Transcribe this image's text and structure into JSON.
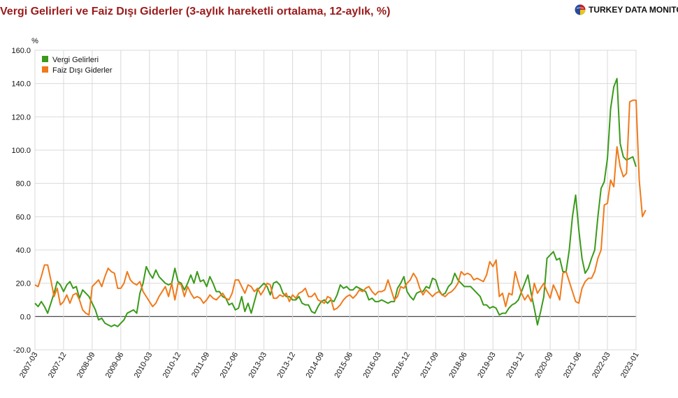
{
  "header": {
    "title": "Vergi Gelirleri ve Faiz Dışı Giderler (3-aylık hareketli ortalama, 12-aylık, %)",
    "brand": "TURKEY DATA MONITOR"
  },
  "colors": {
    "vergi": "#3a9a1a",
    "faiz": "#f07a1a",
    "grid": "#d9d9d9",
    "zero": "#333333",
    "title": "#9a1b1b"
  },
  "chart_data": {
    "type": "line",
    "ylabel": "%",
    "ylim": [
      -20,
      160
    ],
    "yticks": [
      "-20.0",
      "0.0",
      "20.0",
      "40.0",
      "60.0",
      "80.0",
      "100.0",
      "120.0",
      "140.0",
      "160.0"
    ],
    "xticks": [
      "2007-03",
      "2007-12",
      "2008-09",
      "2009-06",
      "2010-03",
      "2010-12",
      "2011-09",
      "2012-06",
      "2013-03",
      "2013-12",
      "2014-09",
      "2015-06",
      "2016-03",
      "2016-12",
      "2017-09",
      "2018-06",
      "2019-03",
      "2019-12",
      "2020-09",
      "2021-06",
      "2022-03",
      "2023-01"
    ],
    "legend": "top-left",
    "grid": true,
    "start": "2007-03",
    "series": [
      {
        "name": "Vergi Gelirleri",
        "values": [
          8,
          6,
          9,
          6,
          2,
          8,
          14,
          21,
          19,
          15,
          19,
          21,
          17,
          18,
          11,
          16,
          14,
          12,
          8,
          4,
          -2,
          -1,
          -4,
          -5,
          -6,
          -5,
          -6,
          -4,
          -2,
          2,
          3,
          4,
          2,
          14,
          20,
          30,
          26,
          23,
          28,
          24,
          22,
          20,
          19,
          20,
          29,
          21,
          20,
          16,
          20,
          25,
          20,
          27,
          21,
          22,
          18,
          24,
          20,
          15,
          15,
          12,
          11,
          7,
          8,
          4,
          5,
          12,
          3,
          8,
          2,
          9,
          16,
          18,
          20,
          18,
          13,
          20,
          21,
          19,
          14,
          12,
          12,
          10,
          10,
          12,
          8,
          7,
          7,
          3,
          2,
          6,
          9,
          10,
          8,
          10,
          9,
          13,
          19,
          17,
          18,
          16,
          16,
          18,
          17,
          16,
          15,
          10,
          11,
          9,
          9,
          10,
          9,
          8,
          9,
          9,
          17,
          20,
          24,
          15,
          12,
          10,
          14,
          15,
          15,
          18,
          17,
          23,
          22,
          16,
          13,
          14,
          18,
          20,
          26,
          22,
          20,
          18,
          18,
          18,
          16,
          14,
          12,
          7,
          7,
          5,
          6,
          5,
          1,
          2,
          2,
          5,
          7,
          8,
          10,
          15,
          20,
          25,
          14,
          5,
          -5,
          3,
          12,
          35,
          37,
          39,
          34,
          35,
          27,
          27,
          40,
          60,
          73,
          52,
          35,
          26,
          29,
          35,
          40,
          60,
          77,
          81,
          95,
          125,
          138,
          143,
          104,
          96,
          94,
          95,
          96,
          90
        ]
      },
      {
        "name": "Faiz Dışı Giderler",
        "values": [
          19,
          18,
          24,
          31,
          31,
          22,
          12,
          17,
          7,
          9,
          13,
          8,
          13,
          14,
          10,
          4,
          2,
          1,
          18,
          20,
          22,
          18,
          24,
          29,
          27,
          26,
          17,
          17,
          20,
          27,
          22,
          20,
          19,
          21,
          15,
          12,
          9,
          6,
          8,
          12,
          15,
          18,
          12,
          20,
          10,
          20,
          19,
          12,
          18,
          14,
          11,
          12,
          11,
          8,
          10,
          13,
          11,
          10,
          12,
          14,
          11,
          10,
          14,
          22,
          22,
          18,
          14,
          19,
          18,
          15,
          17,
          13,
          16,
          20,
          19,
          11,
          11,
          13,
          12,
          14,
          9,
          13,
          11,
          14,
          15,
          17,
          12,
          12,
          14,
          10,
          9,
          8,
          12,
          11,
          4,
          5,
          7,
          10,
          12,
          13,
          11,
          13,
          16,
          15,
          17,
          18,
          15,
          13,
          15,
          15,
          16,
          22,
          16,
          10,
          12,
          18,
          17,
          20,
          22,
          26,
          23,
          17,
          13,
          16,
          14,
          12,
          14,
          15,
          13,
          12,
          14,
          15,
          17,
          20,
          27,
          25,
          26,
          25,
          22,
          23,
          22,
          21,
          25,
          33,
          30,
          34,
          12,
          14,
          6,
          14,
          13,
          27,
          20,
          14,
          10,
          13,
          9,
          20,
          14,
          17,
          20,
          15,
          11,
          19,
          15,
          10,
          26,
          27,
          21,
          15,
          9,
          8,
          17,
          21,
          23,
          23,
          27,
          35,
          40,
          67,
          68,
          82,
          78,
          102,
          90,
          84,
          86,
          129,
          130,
          130,
          82,
          60,
          64
        ]
      }
    ]
  }
}
